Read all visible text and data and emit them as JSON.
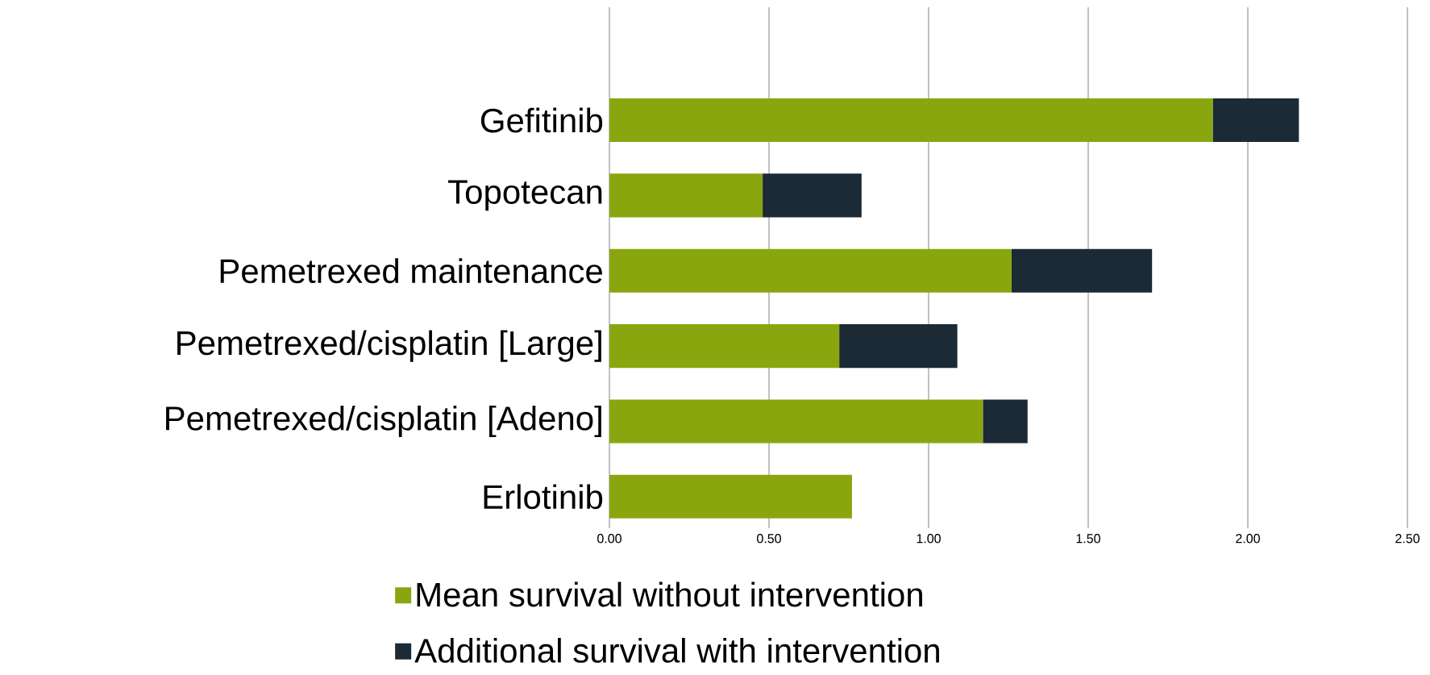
{
  "chart_data": {
    "type": "bar",
    "orientation": "horizontal",
    "stacked": true,
    "categories": [
      "Gefitinib",
      "Topotecan",
      "Pemetrexed maintenance",
      "Pemetrexed/cisplatin [Large]",
      "Pemetrexed/cisplatin [Adeno]",
      "Erlotinib"
    ],
    "series": [
      {
        "name": "Mean survival without intervention",
        "color": "#8aa60f",
        "values": [
          1.89,
          0.48,
          1.26,
          0.72,
          1.17,
          0.76
        ]
      },
      {
        "name": "Additional survival with intervention",
        "color": "#1b2a35",
        "values": [
          0.27,
          0.31,
          0.44,
          0.37,
          0.14,
          0
        ]
      }
    ],
    "xlim": [
      0,
      2.5
    ],
    "xticks": [
      {
        "value": 0,
        "label": "0.00"
      },
      {
        "value": 0.5,
        "label": "0.50"
      },
      {
        "value": 1,
        "label": "1.00"
      },
      {
        "value": 1.5,
        "label": "1.50"
      },
      {
        "value": 2,
        "label": "2.00"
      },
      {
        "value": 2.5,
        "label": "2.50"
      }
    ],
    "grid": "x",
    "legend": "bottom"
  }
}
